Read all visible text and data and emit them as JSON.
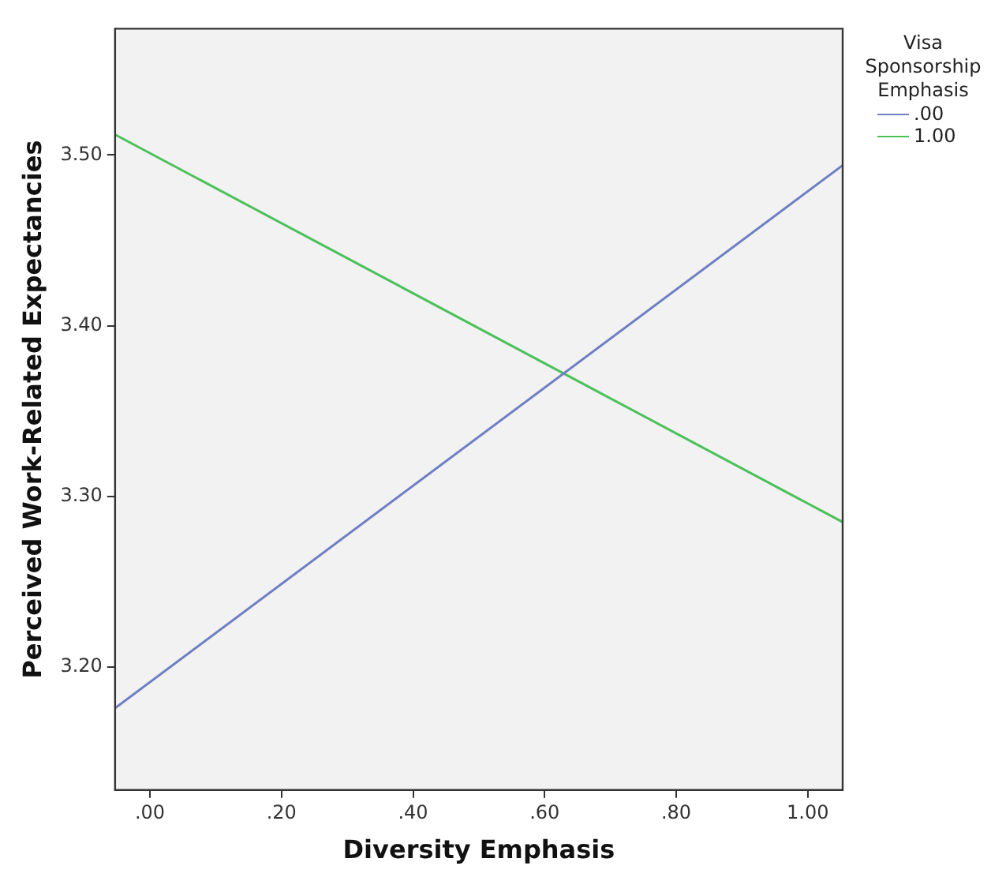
{
  "chart_data": {
    "type": "line",
    "xlabel": "Diversity Emphasis",
    "ylabel": "Perceived Work-Related Expectancies",
    "legend_title": "Visa Sponsorship Emphasis",
    "x": [
      -0.053,
      1.053
    ],
    "series": [
      {
        "name": ".00",
        "color": "#6f7fc4",
        "values": [
          3.176,
          3.494
        ]
      },
      {
        "name": "1.00",
        "color": "#4cc05a",
        "values": [
          3.512,
          3.285
        ]
      }
    ],
    "xlim": [
      -0.053,
      1.053
    ],
    "xticks": [
      {
        "value": 0,
        "label": ".00"
      },
      {
        "value": 0.2,
        "label": ".20"
      },
      {
        "value": 0.4,
        "label": ".40"
      },
      {
        "value": 0.6,
        "label": ".60"
      },
      {
        "value": 0.8,
        "label": ".80"
      },
      {
        "value": 1,
        "label": "1.00"
      }
    ],
    "ylim": [
      3.128,
      3.574
    ],
    "yticks": [
      {
        "value": 3.2,
        "label": "3.20"
      },
      {
        "value": 3.3,
        "label": "3.30"
      },
      {
        "value": 3.4,
        "label": "3.40"
      },
      {
        "value": 3.5,
        "label": "3.50"
      }
    ],
    "grid": false,
    "legend": "top right",
    "marker": "none",
    "line_style": "solid"
  }
}
